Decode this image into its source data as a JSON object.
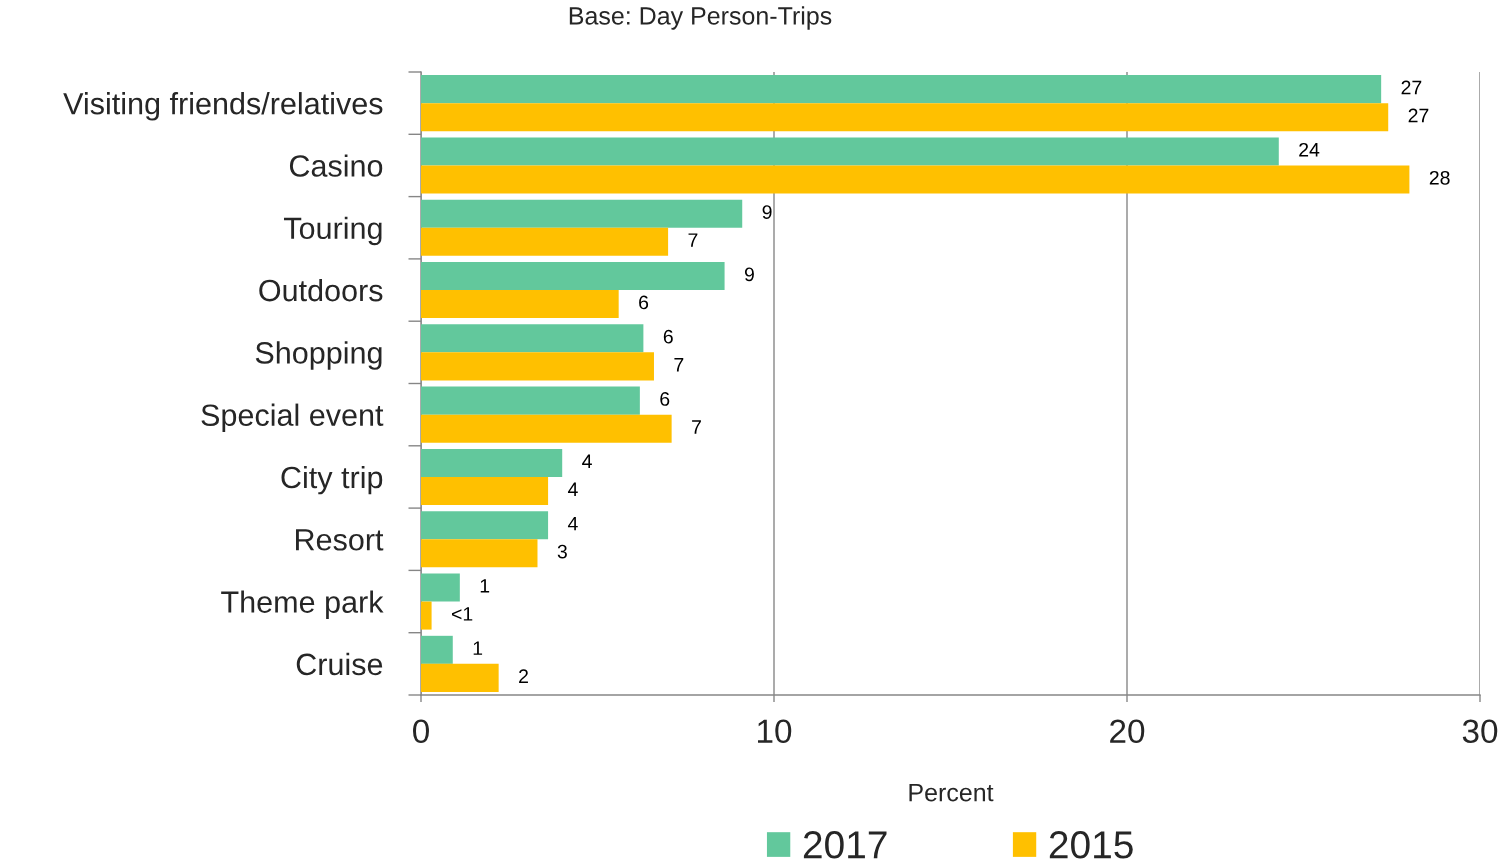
{
  "chart_data": {
    "type": "bar",
    "orientation": "horizontal",
    "title": "Base: Day Person-Trips",
    "xlabel": "Percent",
    "categories": [
      "Visiting friends/relatives",
      "Casino",
      "Touring",
      "Outdoors",
      "Shopping",
      "Special event",
      "City trip",
      "Resort",
      "Theme park",
      "Cruise"
    ],
    "series": [
      {
        "name": "2017",
        "color": "#62c89c",
        "values": [
          27.2,
          24.3,
          9.1,
          8.6,
          6.3,
          6.2,
          4.0,
          3.6,
          1.1,
          0.9
        ],
        "value_labels": [
          "27",
          "24",
          "9",
          "9",
          "6",
          "6",
          "4",
          "4",
          "1",
          "1"
        ]
      },
      {
        "name": "2015",
        "color": "#ffc000",
        "values": [
          27.4,
          28.0,
          7.0,
          5.6,
          6.6,
          7.1,
          3.6,
          3.3,
          0.3,
          2.2
        ],
        "value_labels": [
          "27",
          "28",
          "7",
          "6",
          "7",
          "7",
          "4",
          "3",
          "<1",
          "2"
        ]
      }
    ],
    "xlim": [
      0,
      30
    ],
    "xticks": [
      0,
      10,
      20,
      30
    ],
    "grid": "x",
    "legend": "bottom"
  }
}
